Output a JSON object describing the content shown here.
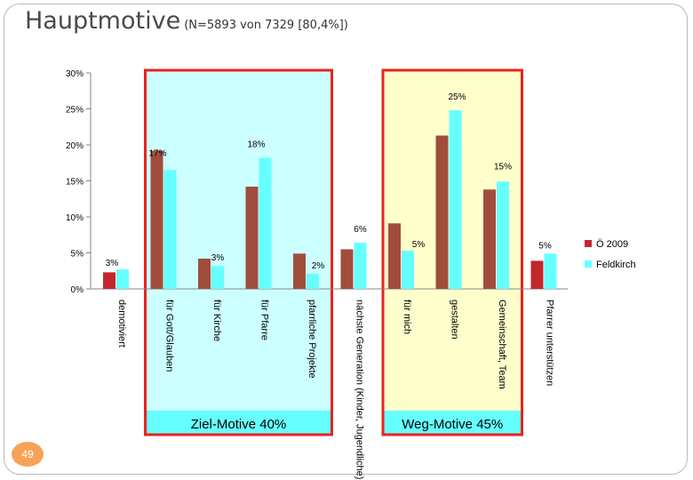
{
  "slide": {
    "title": "Hauptmotive",
    "subtitle": "(N=5893 von 7329 [80,4%])",
    "page_number": "49"
  },
  "groups": [
    {
      "label": "Ziel-Motive 40%",
      "fill": "#ccffff",
      "border": "#e8231e"
    },
    {
      "label": "Weg-Motive 45%",
      "fill": "#ffffcc",
      "border": "#e8231e"
    }
  ],
  "colors": {
    "series_1": "#a14d3c",
    "series_2": "#66ffff",
    "series_1_last": "#c1272d"
  },
  "chart_data": {
    "type": "bar",
    "categories": [
      "demotiviert",
      "für Gott/Glauben",
      "für Kirche",
      "für Pfarre",
      "pfarrliche Projekte",
      "nächste Generation (Kinder, Jugendliche)",
      "für mich",
      "gestalten",
      "Gemeinschaft, Team",
      "Pfarrer unterstützen"
    ],
    "series": [
      {
        "name": "Ö 2009",
        "values": [
          2.3,
          19.2,
          4.2,
          14.2,
          4.9,
          5.5,
          9.1,
          21.3,
          13.8,
          3.9
        ]
      },
      {
        "name": "Feldkirch",
        "values": [
          2.7,
          16.5,
          3.2,
          18.2,
          2.1,
          6.4,
          5.3,
          24.8,
          14.9,
          4.9
        ]
      }
    ],
    "data_labels": [
      {
        "category": 0,
        "series": 1,
        "text": "3%"
      },
      {
        "category": 1,
        "series": 1,
        "text": "17%"
      },
      {
        "category": 2,
        "series": 1,
        "text": "3%"
      },
      {
        "category": 3,
        "series": 1,
        "text": "18%"
      },
      {
        "category": 4,
        "series": 1,
        "text": "2%"
      },
      {
        "category": 5,
        "series": 1,
        "text": "6%"
      },
      {
        "category": 6,
        "series": 1,
        "text": "5%"
      },
      {
        "category": 7,
        "series": 1,
        "text": "25%"
      },
      {
        "category": 8,
        "series": 1,
        "text": "15%"
      },
      {
        "category": 9,
        "series": 1,
        "text": "5%"
      }
    ],
    "yticks": [
      "0%",
      "5%",
      "10%",
      "15%",
      "20%",
      "25%",
      "30%"
    ],
    "ylim": [
      0,
      30
    ],
    "grid": false,
    "legend_position": "right"
  }
}
